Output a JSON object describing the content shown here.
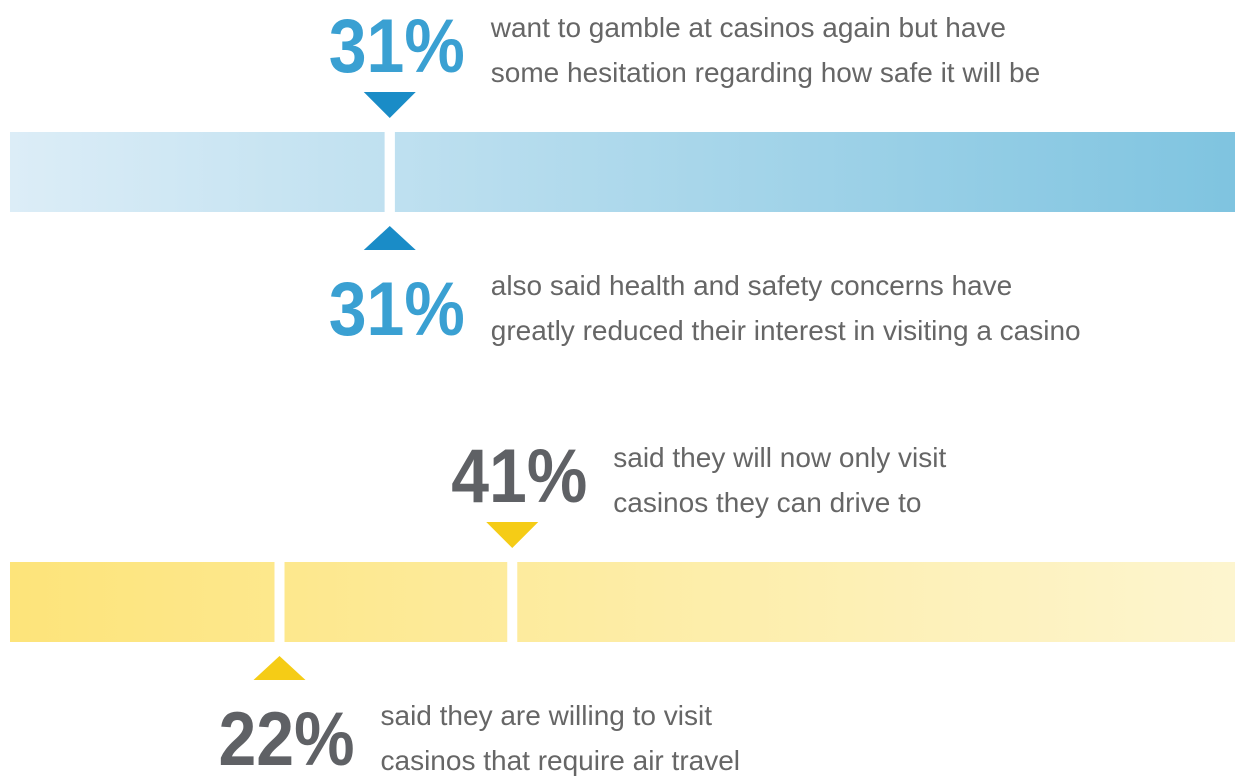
{
  "bars": [
    {
      "gradient": [
        "#dcedf7",
        "#7fc4e0"
      ],
      "marker_color": "#1a8cc7",
      "number_color": "#3aa0d2",
      "callouts": [
        {
          "value": 31,
          "label": "31%",
          "side": "above",
          "lines": [
            "want to gamble at casinos again but have",
            "some hesitation regarding how safe it will be"
          ]
        },
        {
          "value": 31,
          "label": "31%",
          "side": "below",
          "lines": [
            "also said health and safety concerns have",
            "greatly reduced their interest in visiting a casino"
          ]
        }
      ]
    },
    {
      "gradient": [
        "#fde47a",
        "#fdf5cf"
      ],
      "marker_color": "#f5cc16",
      "number_color": "#5f6165",
      "callouts": [
        {
          "value": 41,
          "label": "41%",
          "side": "above",
          "lines": [
            "said they will now only visit",
            "casinos they can drive to"
          ]
        },
        {
          "value": 22,
          "label": "22%",
          "side": "below",
          "lines": [
            "said they are willing to visit",
            "casinos that require air travel"
          ]
        }
      ]
    }
  ]
}
